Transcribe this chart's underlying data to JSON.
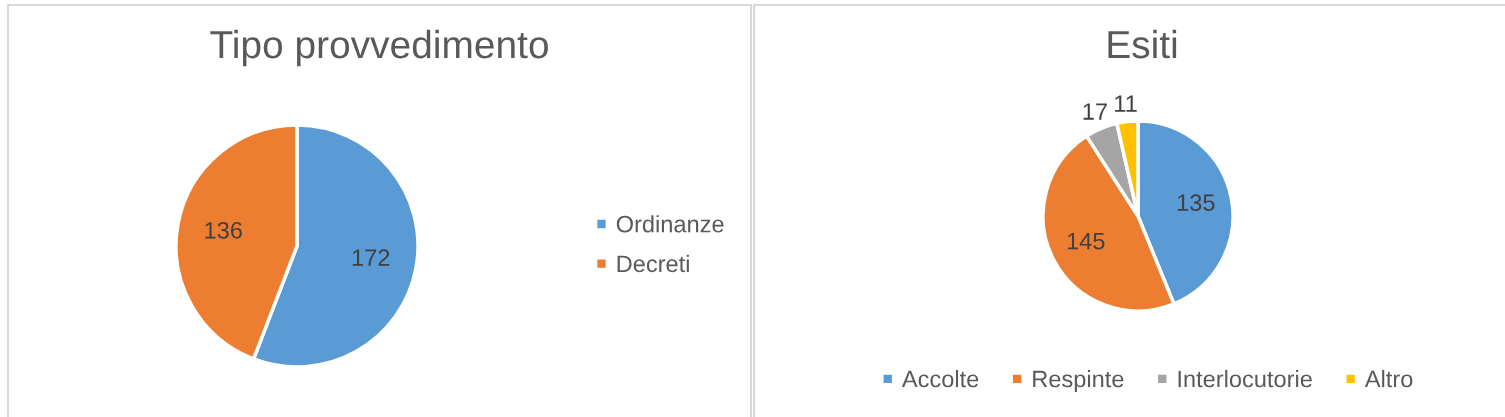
{
  "chart_data": [
    {
      "type": "pie",
      "title": "Tipo provvedimento",
      "categories": [
        "Ordinanze",
        "Decreti"
      ],
      "values": [
        172,
        136
      ],
      "colors": [
        "#5b9bd5",
        "#ed7d31"
      ],
      "data_labels": true,
      "legend": "right"
    },
    {
      "type": "pie",
      "title": "Esiti",
      "categories": [
        "Accolte",
        "Respinte",
        "Interlocutorie",
        "Altro"
      ],
      "values": [
        135,
        145,
        17,
        11
      ],
      "colors": [
        "#5b9bd5",
        "#ed7d31",
        "#a5a5a5",
        "#ffc000"
      ],
      "data_labels": true,
      "legend": "bottom"
    }
  ]
}
